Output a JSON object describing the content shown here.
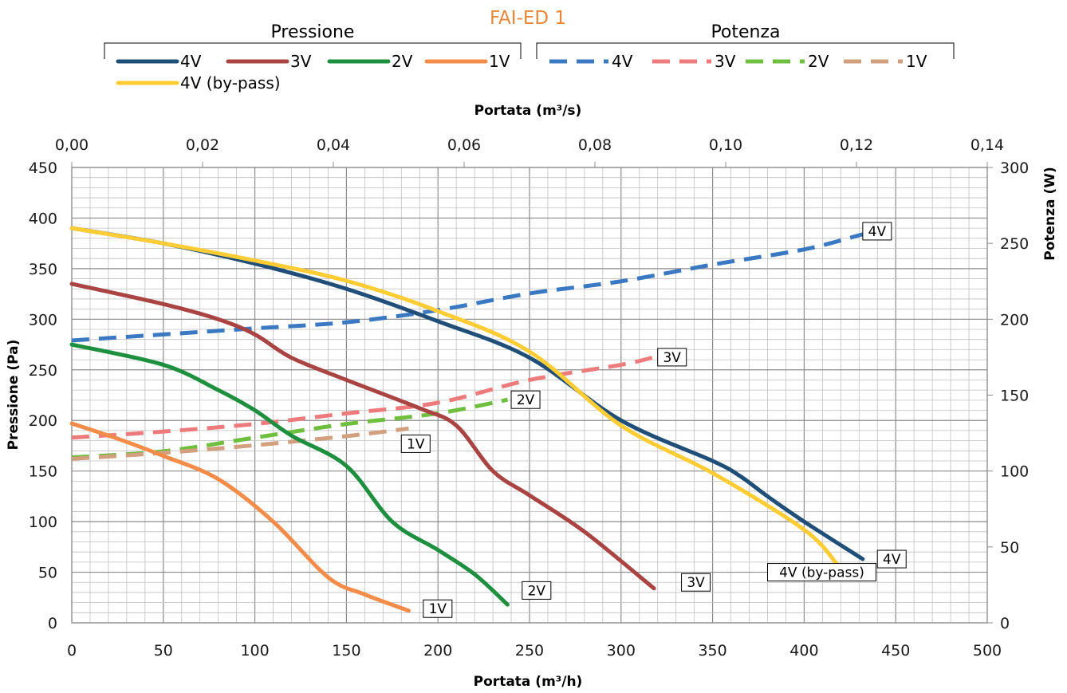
{
  "chart_data": {
    "type": "line",
    "title": "FAI-ED 1",
    "title_color": "#e8873a",
    "xlabel": "Portata (m³/h)",
    "x2label": "Portata (m³/s)",
    "ylabel": "Pressione (Pa)",
    "y2label": "Potenza (W)",
    "xlim": [
      0,
      500
    ],
    "x2lim": [
      0,
      0.14
    ],
    "ylim": [
      0,
      450
    ],
    "y2lim": [
      0,
      300
    ],
    "x_ticks": [
      "0",
      "50",
      "100",
      "150",
      "200",
      "250",
      "300",
      "350",
      "400",
      "450",
      "500"
    ],
    "x2_ticks": [
      "0,00",
      "0,02",
      "0,04",
      "0,06",
      "0,08",
      "0,10",
      "0,12",
      "0,14"
    ],
    "y_ticks": [
      "0",
      "50",
      "100",
      "150",
      "200",
      "250",
      "300",
      "350",
      "400",
      "450"
    ],
    "y2_ticks": [
      "0",
      "50",
      "100",
      "150",
      "200",
      "250",
      "300"
    ],
    "grid": true,
    "legend": {
      "groups": [
        {
          "title": "Pressione",
          "entries": [
            {
              "label": "4V",
              "color": "#1f4e79",
              "dash": false
            },
            {
              "label": "3V",
              "color": "#a94442",
              "dash": false
            },
            {
              "label": "2V",
              "color": "#1e8f3e",
              "dash": false
            },
            {
              "label": "1V",
              "color": "#f28c48",
              "dash": false
            },
            {
              "label": "4V (by-pass)",
              "color": "#ffcc33",
              "dash": false
            }
          ]
        },
        {
          "title": "Potenza",
          "entries": [
            {
              "label": "4V",
              "color": "#3a78c2",
              "dash": true
            },
            {
              "label": "3V",
              "color": "#ee7b7b",
              "dash": true
            },
            {
              "label": "2V",
              "color": "#6fbf3f",
              "dash": true
            },
            {
              "label": "1V",
              "color": "#d2a07f",
              "dash": true
            }
          ]
        }
      ]
    },
    "series": [
      {
        "name": "4V",
        "axis": "pressure",
        "color": "#1f4e79",
        "dash": false,
        "x": [
          0,
          50,
          100,
          150,
          200,
          250,
          300,
          350,
          365,
          380,
          400,
          432
        ],
        "y": [
          390,
          375,
          355,
          330,
          298,
          262,
          200,
          160,
          145,
          125,
          100,
          63
        ],
        "tag": "4V",
        "tag_anchor": [
          440,
          63
        ]
      },
      {
        "name": "4V (by-pass)",
        "axis": "pressure",
        "color": "#ffcc33",
        "dash": false,
        "x": [
          0,
          50,
          100,
          150,
          200,
          250,
          300,
          350,
          400,
          418
        ],
        "y": [
          390,
          375,
          358,
          338,
          308,
          268,
          195,
          148,
          92,
          58
        ],
        "tag": "4V (by-pass)",
        "tag_anchor": [
          380,
          50
        ]
      },
      {
        "name": "3V",
        "axis": "pressure",
        "color": "#a94442",
        "dash": false,
        "x": [
          0,
          50,
          80,
          100,
          120,
          150,
          190,
          210,
          230,
          250,
          280,
          318
        ],
        "y": [
          335,
          315,
          300,
          285,
          262,
          240,
          212,
          195,
          150,
          126,
          90,
          34
        ],
        "tag": "3V",
        "tag_anchor": [
          333,
          40
        ]
      },
      {
        "name": "2V",
        "axis": "pressure",
        "color": "#1e8f3e",
        "dash": false,
        "x": [
          0,
          50,
          80,
          100,
          120,
          150,
          175,
          200,
          220,
          238
        ],
        "y": [
          275,
          255,
          230,
          210,
          185,
          155,
          100,
          72,
          48,
          18
        ],
        "tag": "2V",
        "tag_anchor": [
          246,
          32
        ]
      },
      {
        "name": "1V",
        "axis": "pressure",
        "color": "#f28c48",
        "dash": false,
        "x": [
          0,
          25,
          50,
          80,
          110,
          140,
          160,
          184
        ],
        "y": [
          197,
          182,
          165,
          142,
          100,
          45,
          28,
          12
        ],
        "tag": "1V",
        "tag_anchor": [
          192,
          14
        ]
      },
      {
        "name": "4V",
        "axis": "power",
        "color": "#3a78c2",
        "dash": true,
        "x": [
          0,
          50,
          100,
          150,
          200,
          250,
          300,
          350,
          400,
          432
        ],
        "y": [
          186,
          190,
          194,
          198,
          206,
          217,
          225,
          236,
          246,
          256
        ],
        "tag": "4V",
        "tag_anchor": [
          432,
          258
        ]
      },
      {
        "name": "3V",
        "axis": "power",
        "color": "#ee7b7b",
        "dash": true,
        "x": [
          0,
          50,
          100,
          150,
          200,
          250,
          300,
          318
        ],
        "y": [
          122,
          126,
          131,
          138,
          145,
          160,
          170,
          175
        ],
        "tag": "3V",
        "tag_anchor": [
          320,
          175
        ]
      },
      {
        "name": "2V",
        "axis": "power",
        "color": "#6fbf3f",
        "dash": true,
        "x": [
          0,
          50,
          100,
          150,
          200,
          238
        ],
        "y": [
          109,
          113,
          122,
          131,
          138,
          147
        ],
        "tag": "2V",
        "tag_anchor": [
          240,
          147
        ]
      },
      {
        "name": "1V",
        "axis": "power",
        "color": "#d2a07f",
        "dash": true,
        "x": [
          0,
          50,
          100,
          150,
          184
        ],
        "y": [
          108,
          112,
          117,
          123,
          128
        ],
        "tag": "1V",
        "tag_anchor": [
          180,
          118
        ]
      }
    ]
  }
}
